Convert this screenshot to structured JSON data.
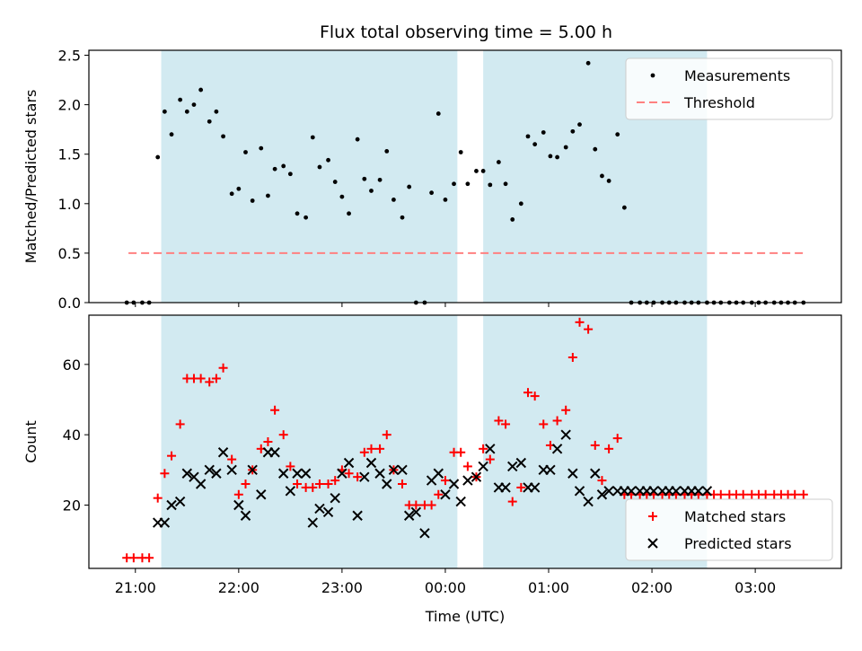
{
  "title": "Flux total observing time = 5.00 h",
  "colors": {
    "shade": "#add8e6",
    "measurement": "#000000",
    "threshold": "#ff8080",
    "matched": "#ff0000",
    "predicted": "#000000"
  },
  "chart_data": [
    {
      "type": "scatter",
      "panel": "top",
      "ylabel": "Matched/Predicted stars",
      "ylim": [
        0,
        2.55
      ],
      "yticks": [
        0.0,
        0.5,
        1.0,
        1.5,
        2.0,
        2.5
      ],
      "ytick_labels": [
        "0.0",
        "0.5",
        "1.0",
        "1.5",
        "2.0",
        "2.5"
      ],
      "legend": {
        "position": "top-right",
        "entries": [
          "Measurements",
          "Threshold"
        ]
      },
      "threshold": {
        "name": "Threshold",
        "value": 0.5,
        "x_start": "20:56",
        "x_end": "03:28"
      },
      "series": [
        {
          "name": "Measurements",
          "x": [
            "20:55",
            "20:59",
            "21:04",
            "21:08",
            "21:13",
            "21:17",
            "21:21",
            "21:26",
            "21:30",
            "21:34",
            "21:38",
            "21:43",
            "21:47",
            "21:51",
            "21:56",
            "22:00",
            "22:04",
            "22:08",
            "22:13",
            "22:17",
            "22:21",
            "22:26",
            "22:30",
            "22:34",
            "22:39",
            "22:43",
            "22:47",
            "22:52",
            "22:56",
            "23:00",
            "23:04",
            "23:09",
            "23:13",
            "23:17",
            "23:22",
            "23:26",
            "23:30",
            "23:35",
            "23:39",
            "23:43",
            "23:48",
            "23:52",
            "23:56",
            "00:00",
            "00:05",
            "00:09",
            "00:13",
            "00:18",
            "00:22",
            "00:26",
            "00:31",
            "00:35",
            "00:39",
            "00:44",
            "00:48",
            "00:52",
            "00:57",
            "01:01",
            "01:05",
            "01:10",
            "01:14",
            "01:18",
            "01:23",
            "01:27",
            "01:31",
            "01:35",
            "01:40",
            "01:44",
            "01:48",
            "01:53",
            "01:57",
            "02:01",
            "02:06",
            "02:10",
            "02:14",
            "02:19",
            "02:23",
            "02:27",
            "02:32",
            "02:36",
            "02:40",
            "02:45",
            "02:49",
            "02:53",
            "02:58",
            "03:02",
            "03:06",
            "03:11",
            "03:15",
            "03:19",
            "03:23",
            "03:28"
          ],
          "y": [
            0,
            0,
            0,
            0,
            1.47,
            1.93,
            1.7,
            2.05,
            1.93,
            2.0,
            2.15,
            1.83,
            1.93,
            1.68,
            1.1,
            1.15,
            1.52,
            1.03,
            1.56,
            1.08,
            1.35,
            1.38,
            1.3,
            0.9,
            0.86,
            1.67,
            1.37,
            1.44,
            1.22,
            1.07,
            0.9,
            1.65,
            1.25,
            1.13,
            1.24,
            1.53,
            1.04,
            0.86,
            1.17,
            0,
            0,
            1.11,
            1.91,
            1.04,
            1.2,
            1.52,
            1.2,
            1.33,
            1.33,
            1.19,
            1.42,
            1.2,
            0.84,
            1.0,
            1.68,
            1.6,
            1.72,
            1.48,
            1.47,
            1.57,
            1.73,
            1.8,
            2.42,
            1.55,
            1.28,
            1.23,
            1.7,
            0.96,
            0,
            0,
            0,
            0,
            0,
            0,
            0,
            0,
            0,
            0,
            0,
            0,
            0,
            0,
            0,
            0,
            0,
            0,
            0,
            0,
            0,
            0,
            0,
            0
          ]
        }
      ]
    },
    {
      "type": "scatter",
      "panel": "bottom",
      "xlabel": "Time (UTC)",
      "ylabel": "Count",
      "ylim": [
        2,
        74
      ],
      "yticks": [
        20,
        40,
        60
      ],
      "ytick_labels": [
        "20",
        "40",
        "60"
      ],
      "x_ticks": [
        "21:00",
        "22:00",
        "23:00",
        "00:00",
        "01:00",
        "02:00",
        "03:00"
      ],
      "legend": {
        "position": "bottom-right",
        "entries": [
          "Matched stars",
          "Predicted stars"
        ]
      },
      "series": [
        {
          "name": "Matched stars",
          "marker": "+",
          "x": [
            "20:55",
            "20:59",
            "21:04",
            "21:08",
            "21:13",
            "21:17",
            "21:21",
            "21:26",
            "21:30",
            "21:34",
            "21:38",
            "21:43",
            "21:47",
            "21:51",
            "21:56",
            "22:00",
            "22:04",
            "22:08",
            "22:13",
            "22:17",
            "22:21",
            "22:26",
            "22:30",
            "22:34",
            "22:39",
            "22:43",
            "22:47",
            "22:52",
            "22:56",
            "23:00",
            "23:04",
            "23:09",
            "23:13",
            "23:17",
            "23:22",
            "23:26",
            "23:30",
            "23:35",
            "23:39",
            "23:43",
            "23:48",
            "23:52",
            "23:56",
            "00:00",
            "00:05",
            "00:09",
            "00:13",
            "00:18",
            "00:22",
            "00:26",
            "00:31",
            "00:35",
            "00:39",
            "00:44",
            "00:48",
            "00:52",
            "00:57",
            "01:01",
            "01:05",
            "01:10",
            "01:14",
            "01:18",
            "01:23",
            "01:27",
            "01:31",
            "01:35",
            "01:40",
            "01:44",
            "01:48",
            "01:53",
            "01:57",
            "02:01",
            "02:06",
            "02:10",
            "02:14",
            "02:19",
            "02:23",
            "02:27",
            "02:32",
            "02:36",
            "02:40",
            "02:45",
            "02:49",
            "02:53",
            "02:58",
            "03:02",
            "03:06",
            "03:11",
            "03:15",
            "03:19",
            "03:23",
            "03:28"
          ],
          "y": [
            5,
            5,
            5,
            5,
            22,
            29,
            34,
            43,
            56,
            56,
            56,
            55,
            56,
            59,
            33,
            23,
            26,
            30,
            36,
            38,
            47,
            40,
            31,
            26,
            25,
            25,
            26,
            26,
            27,
            30,
            29,
            28,
            35,
            36,
            36,
            40,
            30,
            26,
            20,
            20,
            20,
            20,
            23,
            27,
            35,
            35,
            31,
            28,
            36,
            33,
            44,
            43,
            21,
            25,
            52,
            51,
            43,
            37,
            44,
            47,
            62,
            72,
            70,
            37,
            27,
            36,
            39,
            23,
            23,
            23,
            23,
            23,
            23,
            23,
            23,
            23,
            23,
            23,
            23,
            23,
            23,
            23,
            23,
            23,
            23,
            23,
            23,
            23,
            23,
            23,
            23,
            23
          ]
        },
        {
          "name": "Predicted stars",
          "marker": "x",
          "x": [
            "21:13",
            "21:17",
            "21:21",
            "21:26",
            "21:30",
            "21:34",
            "21:38",
            "21:43",
            "21:47",
            "21:51",
            "21:56",
            "22:00",
            "22:04",
            "22:08",
            "22:13",
            "22:17",
            "22:21",
            "22:26",
            "22:30",
            "22:34",
            "22:39",
            "22:43",
            "22:47",
            "22:52",
            "22:56",
            "23:00",
            "23:04",
            "23:09",
            "23:13",
            "23:17",
            "23:22",
            "23:26",
            "23:30",
            "23:35",
            "23:39",
            "23:43",
            "23:48",
            "23:52",
            "23:56",
            "00:00",
            "00:05",
            "00:09",
            "00:13",
            "00:18",
            "00:22",
            "00:26",
            "00:31",
            "00:35",
            "00:39",
            "00:44",
            "00:48",
            "00:52",
            "00:57",
            "01:01",
            "01:05",
            "01:10",
            "01:14",
            "01:18",
            "01:23",
            "01:27",
            "01:31",
            "01:35",
            "01:40",
            "01:44",
            "01:48",
            "01:53",
            "01:57",
            "02:01",
            "02:06",
            "02:10",
            "02:14",
            "02:19",
            "02:23",
            "02:27",
            "02:32"
          ],
          "y": [
            15,
            15,
            20,
            21,
            29,
            28,
            26,
            30,
            29,
            35,
            30,
            20,
            17,
            30,
            23,
            35,
            35,
            29,
            24,
            29,
            29,
            15,
            19,
            18,
            22,
            29,
            32,
            17,
            28,
            32,
            29,
            26,
            30,
            30,
            17,
            18,
            12,
            27,
            29,
            23,
            26,
            21,
            27,
            28,
            31,
            36,
            25,
            25,
            31,
            32,
            25,
            25,
            30,
            30,
            36,
            40,
            29,
            24,
            21,
            29,
            23,
            24,
            24,
            24,
            24,
            24,
            24,
            24,
            24,
            24,
            24,
            24,
            24,
            24,
            24
          ]
        }
      ]
    }
  ],
  "shaded_intervals": [
    {
      "start": "21:15",
      "end": "00:07"
    },
    {
      "start": "00:22",
      "end": "02:32"
    }
  ]
}
